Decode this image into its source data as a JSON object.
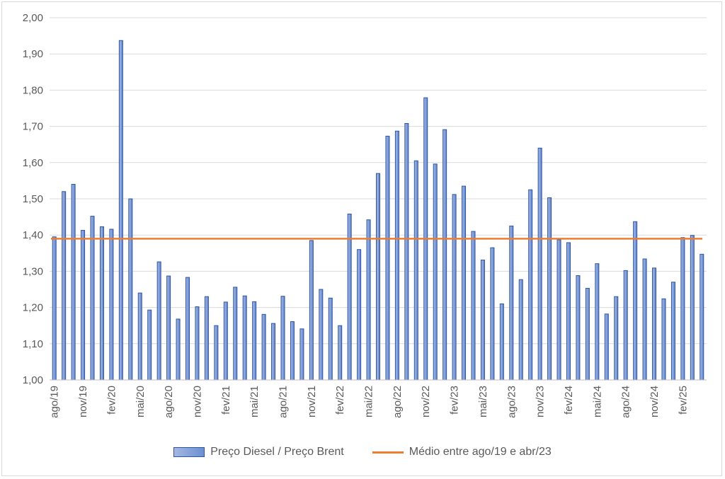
{
  "chart_data": {
    "type": "bar",
    "title": "",
    "xlabel": "",
    "ylabel": "",
    "ylim": [
      1.0,
      2.0
    ],
    "y_ticks": [
      "1,00",
      "1,10",
      "1,20",
      "1,30",
      "1,40",
      "1,50",
      "1,60",
      "1,70",
      "1,80",
      "1,90",
      "2,00"
    ],
    "x_tick_labels": [
      "ago/19",
      "nov/19",
      "fev/20",
      "mai/20",
      "ago/20",
      "nov/20",
      "fev/21",
      "mai/21",
      "ago/21",
      "nov/21",
      "fev/22",
      "mai/22",
      "ago/22",
      "nov/22",
      "fev/23",
      "mai/23",
      "ago/23",
      "nov/23",
      "fev/24",
      "mai/24",
      "ago/24",
      "nov/24",
      "fev/25"
    ],
    "categories": [
      "ago/19",
      "set/19",
      "out/19",
      "nov/19",
      "dez/19",
      "jan/20",
      "fev/20",
      "mar/20",
      "abr/20",
      "mai/20",
      "jun/20",
      "jul/20",
      "ago/20",
      "set/20",
      "out/20",
      "nov/20",
      "dez/20",
      "jan/21",
      "fev/21",
      "mar/21",
      "abr/21",
      "mai/21",
      "jun/21",
      "jul/21",
      "ago/21",
      "set/21",
      "out/21",
      "nov/21",
      "dez/21",
      "jan/22",
      "fev/22",
      "mar/22",
      "abr/22",
      "mai/22",
      "jun/22",
      "jul/22",
      "ago/22",
      "set/22",
      "out/22",
      "nov/22",
      "dez/22",
      "jan/23",
      "fev/23",
      "mar/23",
      "abr/23",
      "mai/23",
      "jun/23",
      "jul/23",
      "ago/23",
      "set/23",
      "out/23",
      "nov/23",
      "dez/23",
      "jan/24",
      "fev/24",
      "mar/24",
      "abr/24",
      "mai/24",
      "jun/24",
      "jul/24",
      "ago/24",
      "set/24",
      "out/24",
      "nov/24",
      "dez/24",
      "jan/25",
      "fev/25",
      "mar/25",
      "abr/25"
    ],
    "series": [
      {
        "name": "Preço Diesel / Preço Brent",
        "color": "#6f8fd4",
        "values": [
          1.395,
          1.52,
          1.54,
          1.413,
          1.452,
          1.423,
          1.416,
          1.937,
          1.5,
          1.24,
          1.193,
          1.326,
          1.287,
          1.168,
          1.283,
          1.202,
          1.23,
          1.15,
          1.215,
          1.256,
          1.232,
          1.216,
          1.181,
          1.156,
          1.231,
          1.161,
          1.141,
          1.385,
          1.25,
          1.226,
          1.15,
          1.458,
          1.36,
          1.442,
          1.57,
          1.673,
          1.687,
          1.708,
          1.605,
          1.779,
          1.596,
          1.691,
          1.512,
          1.535,
          1.41,
          1.331,
          1.365,
          1.21,
          1.425,
          1.277,
          1.525,
          1.64,
          1.503,
          1.387,
          1.379,
          1.288,
          1.253,
          1.321,
          1.182,
          1.23,
          1.302,
          1.437,
          1.334,
          1.309,
          1.224,
          1.27,
          1.393,
          1.399,
          1.347
        ]
      }
    ],
    "reference_line": {
      "name": "Médio entre ago/19 e abr/23",
      "value": 1.39,
      "color": "#ed7d31"
    },
    "grid": true,
    "legend_position": "bottom"
  }
}
